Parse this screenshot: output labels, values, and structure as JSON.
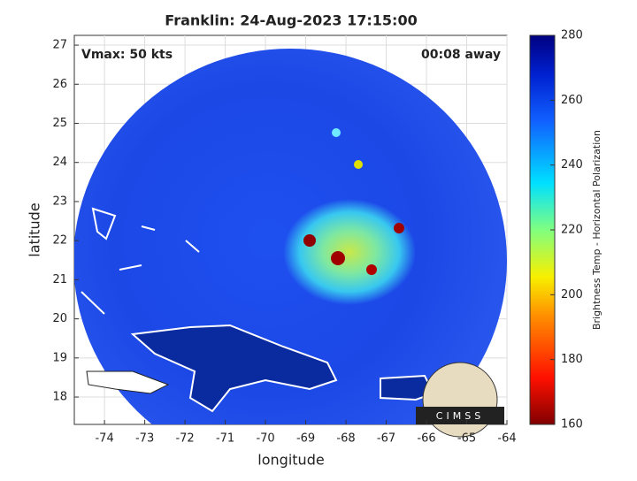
{
  "title": "Franklin: 24-Aug-2023 17:15:00",
  "vmax": "Vmax: 50 kts",
  "time_away": "00:08 away",
  "x_label": "longitude",
  "y_label": "latitude",
  "xlim": [
    -74.75,
    -64
  ],
  "ylim": [
    17.3,
    27.25
  ],
  "xticks": [
    -74,
    -73,
    -72,
    -71,
    -70,
    -69,
    -68,
    -67,
    -66,
    -65,
    -64
  ],
  "yticks": [
    18,
    19,
    20,
    21,
    22,
    23,
    24,
    25,
    26,
    27
  ],
  "colorbar": {
    "label": "Brightness Temp - Horizontal Polarization",
    "lim": [
      160,
      280
    ],
    "ticks": [
      160,
      180,
      200,
      220,
      240,
      260,
      280
    ]
  },
  "logo": "CIMSS"
}
